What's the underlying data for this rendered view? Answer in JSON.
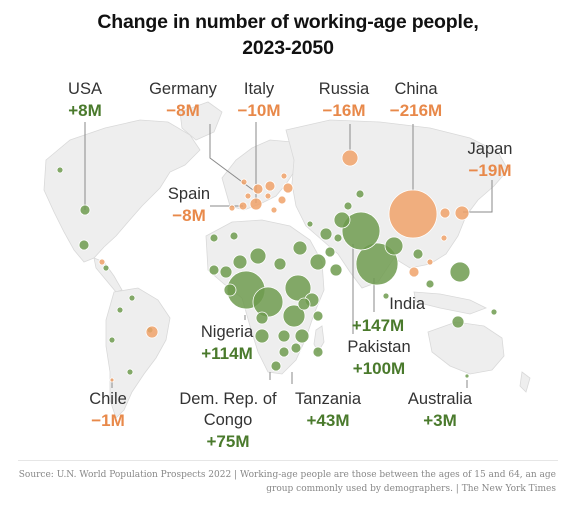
{
  "title_line1": "Change in number of working-age people,",
  "title_line2": "2023-2050",
  "colors": {
    "growth": "#6e9b4f",
    "decline": "#f0a26a",
    "growth_text": "#4a7a2c",
    "decline_text": "#e8894a",
    "land": "#eeeeee"
  },
  "labels": {
    "usa": {
      "name": "USA",
      "value": "+8M"
    },
    "germany": {
      "name": "Germany",
      "value": "−8M"
    },
    "italy": {
      "name": "Italy",
      "value": "−10M"
    },
    "russia": {
      "name": "Russia",
      "value": "−16M"
    },
    "china": {
      "name": "China",
      "value": "−216M"
    },
    "japan": {
      "name": "Japan",
      "value": "−19M"
    },
    "spain": {
      "name": "Spain",
      "value": "−8M"
    },
    "india": {
      "name": "India",
      "value": "+147M"
    },
    "nigeria": {
      "name": "Nigeria",
      "value": "+114M"
    },
    "pakistan": {
      "name": "Pakistan",
      "value": "+100M"
    },
    "chile": {
      "name": "Chile",
      "value": "−1M"
    },
    "drc": {
      "name_line1": "Dem. Rep. of",
      "name_line2": "Congo",
      "value": "+75M"
    },
    "tanzania": {
      "name": "Tanzania",
      "value": "+43M"
    },
    "australia": {
      "name": "Australia",
      "value": "+3M"
    }
  },
  "source_line1": "Source: U.N. World Population Prospects 2022 | Working-age people are those between the ages of 15 and 64, an age",
  "source_line2": "group commonly used by demographers. | The New York Times"
}
